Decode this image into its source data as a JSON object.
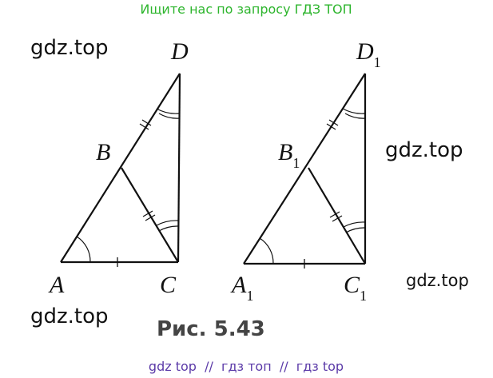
{
  "header": {
    "text": "Ищите нас по запросу ГДЗ ТОП"
  },
  "watermarks": [
    "gdz.top",
    "gdz.top",
    "gdz.top",
    "gdz.top"
  ],
  "figure": {
    "left": {
      "A": "A",
      "B": "B",
      "C": "C",
      "D": "D"
    },
    "right": {
      "A": {
        "letter": "A",
        "sub": "1"
      },
      "B": {
        "letter": "B",
        "sub": "1"
      },
      "C": {
        "letter": "C",
        "sub": "1"
      },
      "D": {
        "letter": "D",
        "sub": "1"
      }
    },
    "caption": "Рис. 5.43"
  },
  "footer": {
    "text": "gdz top  //  гдз топ  //  гдз top"
  }
}
